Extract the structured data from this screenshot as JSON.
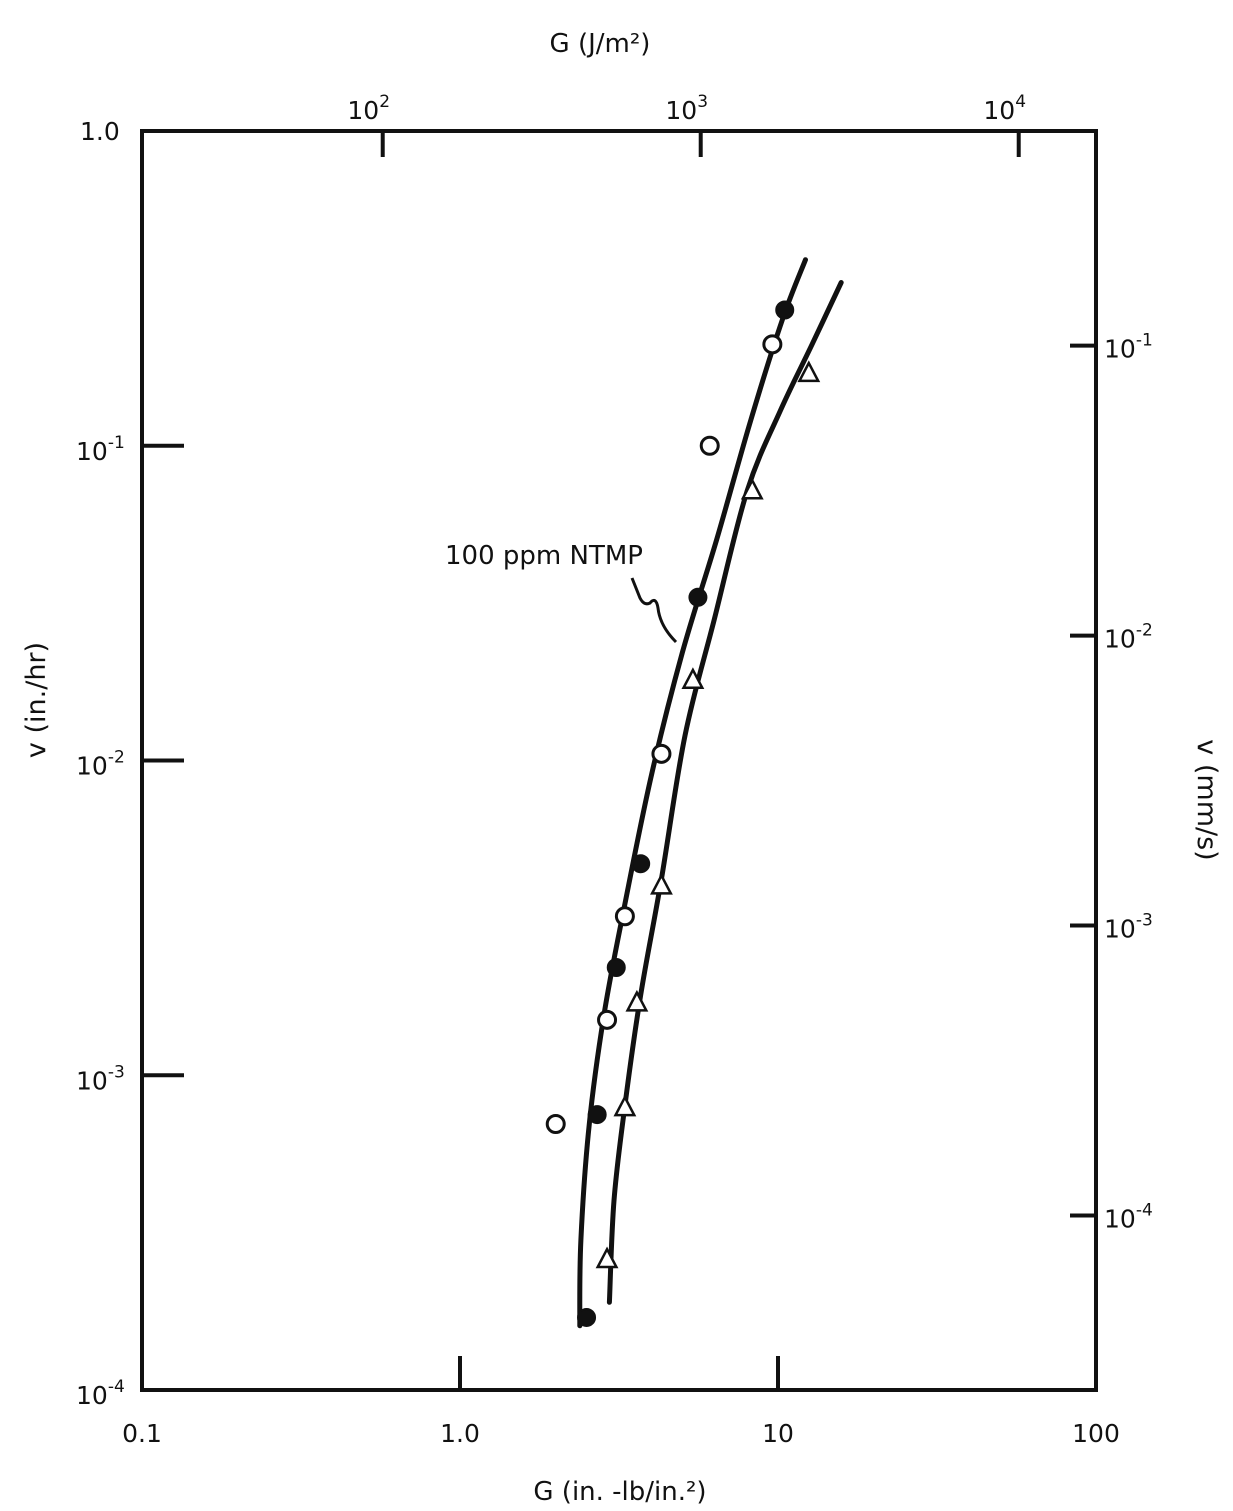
{
  "chart_data": {
    "type": "scatter",
    "title": "",
    "axes": {
      "x_bottom": {
        "label": "G (in. -lb/in.²)",
        "scale": "log",
        "range": [
          0.1,
          100
        ],
        "ticks": [
          {
            "value": 0.1,
            "label": "0.1"
          },
          {
            "value": 1,
            "label": "1.0"
          },
          {
            "value": 10,
            "label": "10"
          },
          {
            "value": 100,
            "label": "100"
          }
        ]
      },
      "x_top": {
        "label": "G (J/m²)",
        "scale": "log",
        "ticks": [
          {
            "value": 100,
            "mantissa": "10",
            "exponent": "2"
          },
          {
            "value": 1000,
            "mantissa": "10",
            "exponent": "3"
          },
          {
            "value": 10000,
            "mantissa": "10",
            "exponent": "4"
          }
        ]
      },
      "y_left": {
        "label": "v (in./hr)",
        "scale": "log",
        "range": [
          0.0001,
          1.0
        ],
        "ticks": [
          {
            "value": 1.0,
            "mantissa": "1.0",
            "exponent": ""
          },
          {
            "value": 0.1,
            "mantissa": "10",
            "exponent": "-1"
          },
          {
            "value": 0.01,
            "mantissa": "10",
            "exponent": "-2"
          },
          {
            "value": 0.001,
            "mantissa": "10",
            "exponent": "-3"
          },
          {
            "value": 0.0001,
            "mantissa": "10",
            "exponent": "-4"
          }
        ]
      },
      "y_right": {
        "label": "v (mm/s)",
        "scale": "log",
        "ticks": [
          {
            "value": 0.1,
            "mantissa": "10",
            "exponent": "-1"
          },
          {
            "value": 0.01,
            "mantissa": "10",
            "exponent": "-2"
          },
          {
            "value": 0.001,
            "mantissa": "10",
            "exponent": "-3"
          },
          {
            "value": 0.0001,
            "mantissa": "10",
            "exponent": "-4"
          }
        ]
      }
    },
    "annotations": [
      {
        "text": "100 ppm NTMP"
      }
    ],
    "series": [
      {
        "marker": "filled-circle",
        "points": [
          [
            10.5,
            0.27
          ],
          [
            5.6,
            0.033
          ],
          [
            3.7,
            0.0047
          ],
          [
            3.1,
            0.0022
          ],
          [
            2.7,
            0.00075
          ],
          [
            2.5,
            0.00017
          ]
        ]
      },
      {
        "marker": "open-circle",
        "points": [
          [
            9.6,
            0.21
          ],
          [
            6.1,
            0.1
          ],
          [
            4.3,
            0.0105
          ],
          [
            3.3,
            0.0032
          ],
          [
            2.9,
            0.0015
          ],
          [
            2.0,
            0.0007
          ]
        ]
      },
      {
        "marker": "open-triangle",
        "points": [
          [
            12.5,
            0.17
          ],
          [
            8.3,
            0.072
          ],
          [
            5.4,
            0.018
          ],
          [
            4.3,
            0.004
          ],
          [
            3.6,
            0.0017
          ],
          [
            3.3,
            0.00079
          ],
          [
            2.9,
            0.00026
          ]
        ]
      }
    ],
    "curves": [
      {
        "style": "solid",
        "points": [
          [
            2.38,
            0.00016
          ],
          [
            2.4,
            0.0003
          ],
          [
            2.55,
            0.0007
          ],
          [
            2.85,
            0.0016
          ],
          [
            3.3,
            0.0035
          ],
          [
            4.0,
            0.009
          ],
          [
            5.0,
            0.022
          ],
          [
            6.4,
            0.05
          ],
          [
            8.2,
            0.12
          ],
          [
            10.3,
            0.25
          ],
          [
            12.2,
            0.39
          ]
        ]
      },
      {
        "style": "solid",
        "points": [
          [
            2.95,
            0.00019
          ],
          [
            3.05,
            0.0004
          ],
          [
            3.3,
            0.0008
          ],
          [
            3.7,
            0.0018
          ],
          [
            4.3,
            0.0042
          ],
          [
            5.1,
            0.012
          ],
          [
            6.3,
            0.028
          ],
          [
            8.0,
            0.072
          ],
          [
            10.2,
            0.13
          ],
          [
            12.8,
            0.21
          ],
          [
            15.8,
            0.33
          ]
        ]
      }
    ]
  }
}
